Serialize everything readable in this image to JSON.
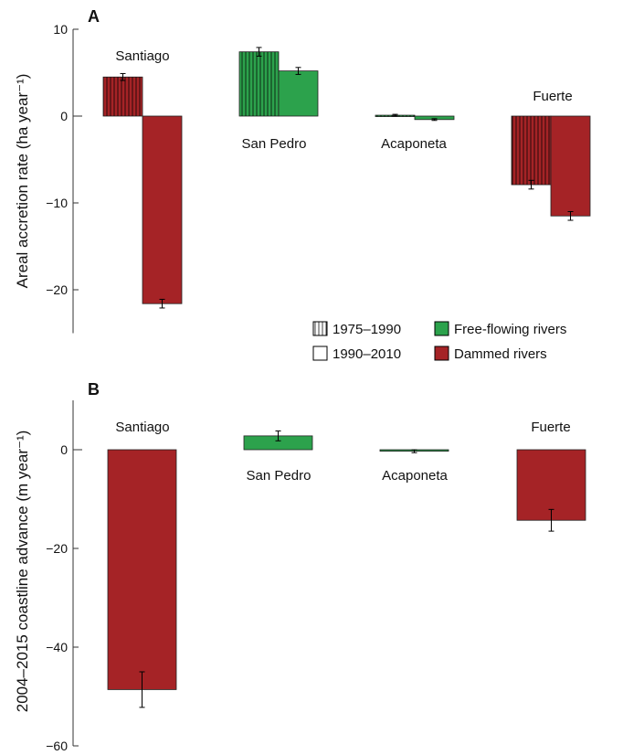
{
  "chart_data": [
    {
      "type": "bar",
      "panel_label": "A",
      "ylabel": "Areal accretion rate (ha year⁻¹)",
      "ylim": [
        -25,
        10
      ],
      "yticks": [
        10,
        0,
        -10,
        -20
      ],
      "ytick_labels": [
        "10",
        "0",
        "−10",
        "−20"
      ],
      "grid": false,
      "categories": [
        "Santiago",
        "San Pedro",
        "Acaponeta",
        "Fuerte"
      ],
      "river_type": [
        "dammed",
        "free-flowing",
        "free-flowing",
        "dammed"
      ],
      "series": [
        {
          "name": "1975–1990",
          "values": [
            4.5,
            7.4,
            0.1,
            -7.9
          ],
          "errors": [
            0.4,
            0.5,
            0.1,
            0.5
          ]
        },
        {
          "name": "1990–2010",
          "values": [
            -21.6,
            5.2,
            -0.4,
            -11.5
          ],
          "errors": [
            0.5,
            0.4,
            0.1,
            0.5
          ]
        }
      ],
      "legend": {
        "placement": "lower-right",
        "period_items": [
          "1975–1990",
          "1990–2010"
        ],
        "type_items": [
          "Free-flowing rivers",
          "Dammed rivers"
        ]
      }
    },
    {
      "type": "bar",
      "panel_label": "B",
      "ylabel": "2004–2015 coastline advance (m year⁻¹)",
      "ylim": [
        -60,
        10
      ],
      "yticks": [
        0,
        -20,
        -40,
        -60
      ],
      "ytick_labels": [
        "0",
        "−20",
        "−40",
        "−60"
      ],
      "grid": false,
      "categories": [
        "Santiago",
        "San Pedro",
        "Acaponeta",
        "Fuerte"
      ],
      "river_type": [
        "dammed",
        "free-flowing",
        "free-flowing",
        "dammed"
      ],
      "values": [
        -48.6,
        2.8,
        -0.3,
        -14.3
      ],
      "errors": [
        3.6,
        1.0,
        0.3,
        2.2
      ]
    }
  ],
  "colors": {
    "free_flowing": "#2ca24c",
    "dammed": "#a52326",
    "axis": "#333333"
  }
}
